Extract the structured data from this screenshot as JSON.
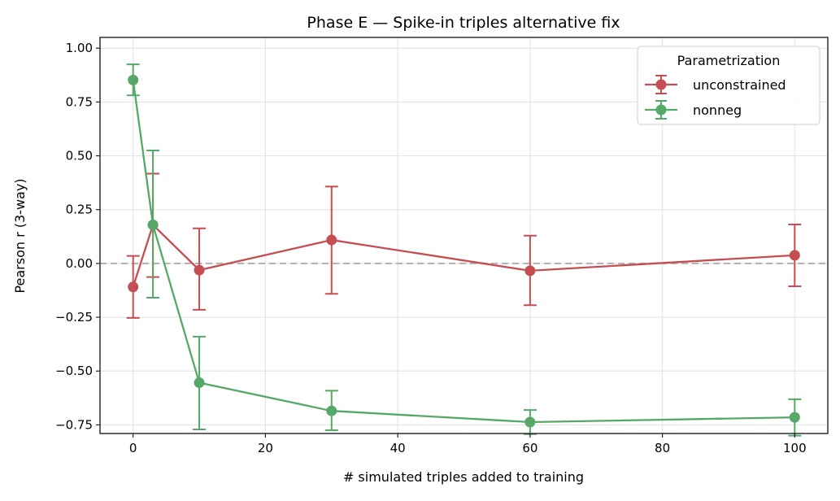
{
  "chart_data": {
    "type": "line",
    "title": "Phase E — Spike-in triples alternative fix",
    "xlabel": "# simulated triples added to training",
    "ylabel": "Pearson r (3-way)",
    "xlim": [
      -5,
      105
    ],
    "ylim": [
      -0.79,
      1.05
    ],
    "xticks": [
      0,
      20,
      40,
      60,
      80,
      100
    ],
    "xtick_labels": [
      "0",
      "20",
      "40",
      "60",
      "80",
      "100"
    ],
    "yticks": [
      1.0,
      0.75,
      0.5,
      0.25,
      0.0,
      -0.25,
      -0.5,
      -0.75
    ],
    "ytick_labels": [
      "1.00",
      "0.75",
      "0.50",
      "0.25",
      "0.00",
      "−0.25",
      "−0.50",
      "−0.75"
    ],
    "grid": true,
    "reference_line": {
      "y": 0,
      "style": "dashed",
      "color": "#b0b0b0"
    },
    "legend": {
      "title": "Parametrization",
      "placement": "top-right"
    },
    "x": [
      0,
      3,
      10,
      30,
      60,
      100
    ],
    "series": [
      {
        "name": "unconstrained",
        "color": "#c44e52",
        "values": [
          -0.109,
          0.179,
          -0.031,
          0.109,
          -0.034,
          0.038
        ],
        "err_low": [
          -0.253,
          -0.063,
          -0.215,
          -0.141,
          -0.194,
          -0.106
        ],
        "err_high": [
          0.035,
          0.417,
          0.163,
          0.357,
          0.129,
          0.181
        ]
      },
      {
        "name": "nonneg",
        "color": "#55a868",
        "values": [
          0.852,
          0.179,
          -0.554,
          -0.685,
          -0.737,
          -0.715
        ],
        "err_low": [
          0.781,
          -0.159,
          -0.771,
          -0.775,
          -0.793,
          -0.8
        ],
        "err_high": [
          0.925,
          0.525,
          -0.34,
          -0.591,
          -0.681,
          -0.631
        ]
      }
    ]
  }
}
